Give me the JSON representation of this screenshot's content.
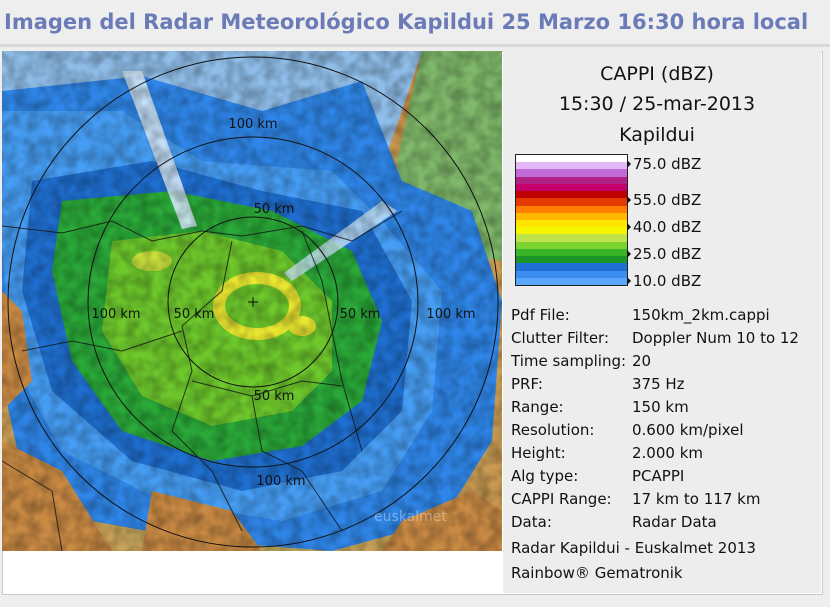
{
  "title": "Imagen del Radar Meteorológico Kapildui 25 Marzo 16:30 hora local",
  "panel": {
    "product": "CAPPI (dBZ)",
    "datetime": "15:30 / 25-mar-2013",
    "station": "Kapildui",
    "legend_labels": [
      "75.0 dBZ",
      "55.0 dBZ",
      "40.0 dBZ",
      "25.0 dBZ",
      "10.0 dBZ"
    ],
    "legend_colors": [
      "#ffffff",
      "#e2b8f6",
      "#c26ad6",
      "#b02285",
      "#c4006a",
      "#be0000",
      "#e23a00",
      "#ff7e00",
      "#ffb700",
      "#ffe500",
      "#f5f500",
      "#c0e24a",
      "#7ed330",
      "#38b428",
      "#1c9628",
      "#1e6ed4",
      "#3b8ef0",
      "#5aa6ff"
    ],
    "info": [
      {
        "key": "Pdf File:",
        "value": "150km_2km.cappi"
      },
      {
        "key": "Clutter Filter:",
        "value": "Doppler Num 10 to 12"
      },
      {
        "key": "Time sampling:",
        "value": "20"
      },
      {
        "key": "PRF:",
        "value": "375 Hz"
      },
      {
        "key": "Range:",
        "value": "150 km"
      },
      {
        "key": "Resolution:",
        "value": "0.600 km/pixel"
      },
      {
        "key": "Height:",
        "value": "2.000 km"
      },
      {
        "key": "Alg type:",
        "value": "PCAPPI"
      },
      {
        "key": "CAPPI Range:",
        "value": "17 km to 117 km"
      },
      {
        "key": "Data:",
        "value": "Radar Data"
      }
    ],
    "footer1": "Radar Kapildui - Euskalmet 2013",
    "footer2": "Rainbow® Gematronik"
  },
  "map": {
    "range_labels": [
      "100 km",
      "50 km",
      "100 km",
      "50 km",
      "50 km",
      "100 km",
      "50 km",
      "100 km"
    ],
    "watermark": "euskalmet"
  }
}
